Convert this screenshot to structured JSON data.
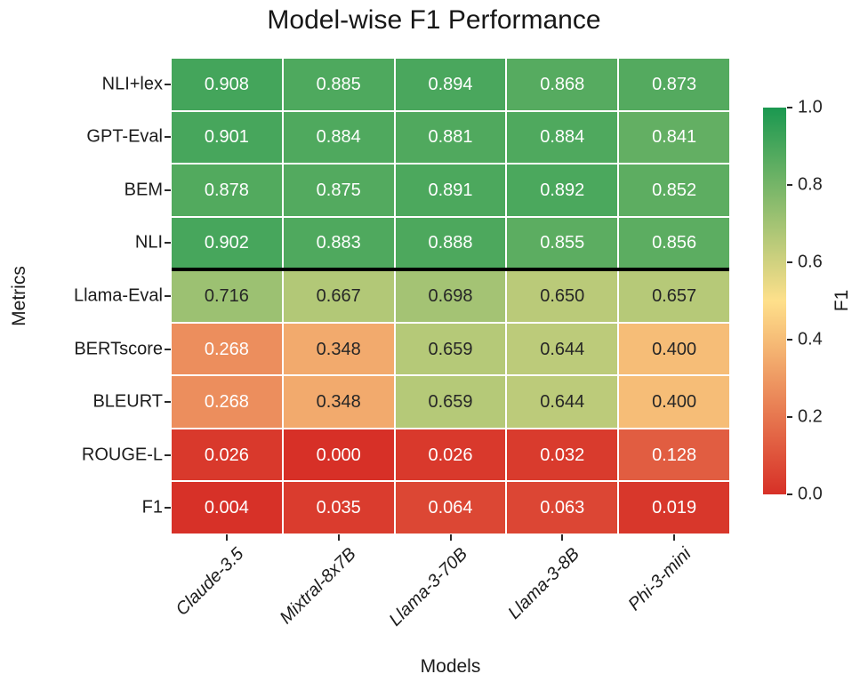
{
  "chart_data": {
    "type": "heatmap",
    "title": "Model-wise F1 Performance",
    "xlabel": "Models",
    "ylabel": "Metrics",
    "colorbar_label": "F1",
    "rows": [
      "NLI+lex",
      "GPT-Eval",
      "BEM",
      "NLI",
      "Llama-Eval",
      "BERTscore",
      "BLEURT",
      "ROUGE-L",
      "F1"
    ],
    "columns": [
      "Claude-3.5",
      "Mixtral-8x7B",
      "Llama-3-70B",
      "Llama-3-8B",
      "Phi-3-mini"
    ],
    "values": [
      [
        0.908,
        0.885,
        0.894,
        0.868,
        0.873
      ],
      [
        0.901,
        0.884,
        0.881,
        0.884,
        0.841
      ],
      [
        0.878,
        0.875,
        0.891,
        0.892,
        0.852
      ],
      [
        0.902,
        0.883,
        0.888,
        0.855,
        0.856
      ],
      [
        0.716,
        0.667,
        0.698,
        0.65,
        0.657
      ],
      [
        0.268,
        0.348,
        0.659,
        0.644,
        0.4
      ],
      [
        0.268,
        0.348,
        0.659,
        0.644,
        0.4
      ],
      [
        0.026,
        0.0,
        0.026,
        0.032,
        0.128
      ],
      [
        0.004,
        0.035,
        0.064,
        0.063,
        0.019
      ]
    ],
    "value_decimals": 3,
    "vmin": 0.0,
    "vmax": 1.0,
    "colormap_stops": [
      "#d73027",
      "#fee08b",
      "#1a9850"
    ],
    "colorbar_ticks": [
      1.0,
      0.8,
      0.6,
      0.4,
      0.2,
      0.0
    ],
    "colorbar_tick_decimals": 1,
    "separator_after_row_index": 3,
    "annotation_text_light": "#ffffff",
    "annotation_text_dark": "#262626",
    "gridline_color": "#ffffff",
    "separator_color": "#000000",
    "legend_position": "right",
    "grid": "white cell borders"
  }
}
